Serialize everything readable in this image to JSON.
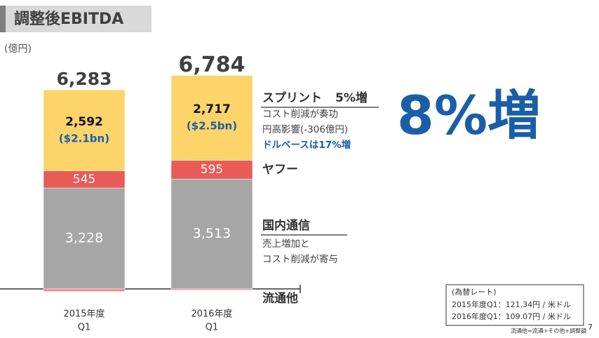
{
  "chart_data": {
    "type": "stacked-bar",
    "title": "調整後EBITDA",
    "unit_label": "(億円)",
    "categories": [
      [
        "2015年度",
        "Q1"
      ],
      [
        "2016年度",
        "Q1"
      ]
    ],
    "series": [
      {
        "name": "国内通信",
        "color": "#a6a6a6",
        "values": [
          3228,
          3513
        ],
        "value_labels": [
          "3,228",
          "3,513"
        ],
        "notes": [
          "売上増加と",
          "コスト削減が寄与"
        ]
      },
      {
        "name": "ヤフー",
        "color": "#e95b57",
        "values": [
          545,
          595
        ]
      },
      {
        "name": "スプリント",
        "growth": "5%増",
        "color": "#fcd46a",
        "values": [
          2592,
          2717
        ],
        "value_labels": [
          "2,592",
          "2,717"
        ],
        "usd_labels": [
          "($2.1bn)",
          "($2.5bn)"
        ],
        "notes": [
          "コスト削減が奏功",
          "円高影響(-306億円)"
        ],
        "highlight_note": "ドルベースは17%増"
      },
      {
        "name": "流通他",
        "color": "#f08a90",
        "values": [
          -82,
          -41
        ]
      }
    ],
    "totals": [
      6283,
      6784
    ],
    "total_labels": [
      "6,283",
      "6,784"
    ],
    "headline": "8%増",
    "fx_box": {
      "title": "(為替レート)",
      "lines": [
        "2015年度Q1：121.34円 / 米ドル",
        "2016年度Q1：109.07円 / 米ドル"
      ]
    },
    "footnote": "流通他=流通+その他+調整額",
    "page_number": "7"
  }
}
